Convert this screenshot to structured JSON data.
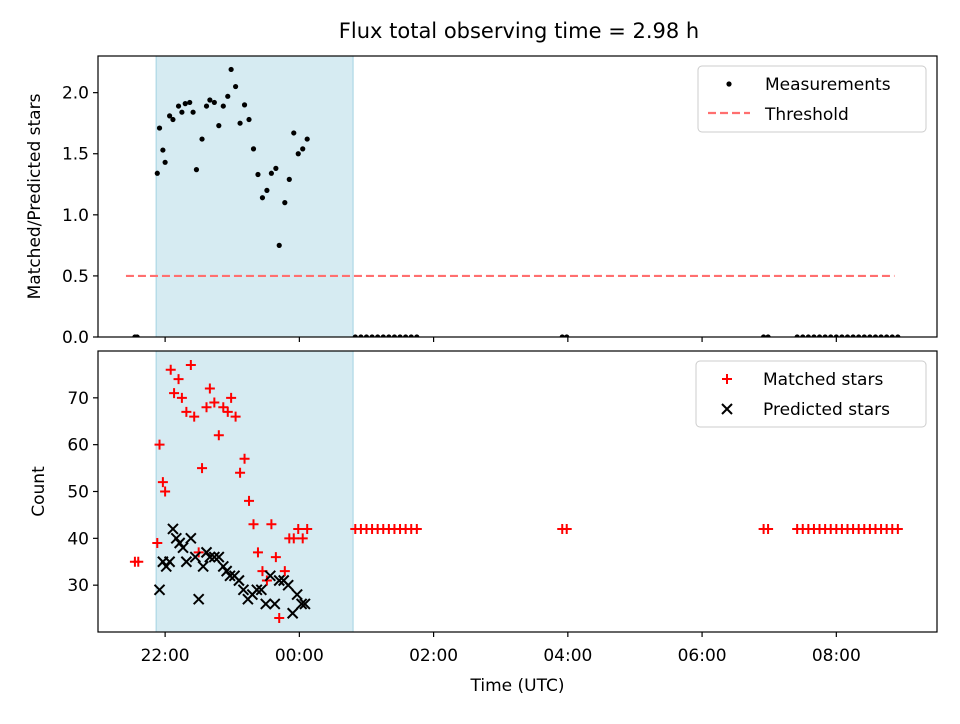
{
  "title": "Flux total observing time = 2.98 h",
  "xlabel": "Time (UTC)",
  "x_ticks": [
    "22:00",
    "00:00",
    "02:00",
    "04:00",
    "06:00",
    "08:00"
  ],
  "colors": {
    "highlight": "#add8e6",
    "measurement": "#000000",
    "threshold": "#ff6f6f",
    "matched": "#ff0000",
    "predicted": "#000000"
  },
  "chart_data": [
    {
      "type": "scatter",
      "ylabel": "Matched/Predicted stars",
      "xlim": [
        "21:00",
        "09:30"
      ],
      "ylim": [
        0,
        2.3
      ],
      "y_ticks": [
        "0.0",
        "0.5",
        "1.0",
        "1.5",
        "2.0"
      ],
      "legend_position": "top-right",
      "highlight_span": [
        "21:52",
        "00:48"
      ],
      "threshold": {
        "name": "Threshold",
        "y": 0.5,
        "x_range": [
          "21:25",
          "08:52"
        ]
      },
      "series": [
        {
          "name": "Measurements",
          "points": [
            [
              "21:33",
              0
            ],
            [
              "21:35",
              0
            ],
            [
              "21:53",
              1.34
            ],
            [
              "21:55",
              1.71
            ],
            [
              "21:58",
              1.53
            ],
            [
              "22:00",
              1.43
            ],
            [
              "22:04",
              1.81
            ],
            [
              "22:07",
              1.78
            ],
            [
              "22:12",
              1.89
            ],
            [
              "22:15",
              1.84
            ],
            [
              "22:18",
              1.91
            ],
            [
              "22:22",
              1.92
            ],
            [
              "22:25",
              1.84
            ],
            [
              "22:28",
              1.37
            ],
            [
              "22:33",
              1.62
            ],
            [
              "22:37",
              1.89
            ],
            [
              "22:40",
              1.94
            ],
            [
              "22:44",
              1.92
            ],
            [
              "22:48",
              1.73
            ],
            [
              "22:52",
              1.89
            ],
            [
              "22:56",
              1.97
            ],
            [
              "22:59",
              2.19
            ],
            [
              "23:03",
              2.05
            ],
            [
              "23:07",
              1.75
            ],
            [
              "23:11",
              1.9
            ],
            [
              "23:15",
              1.78
            ],
            [
              "23:19",
              1.54
            ],
            [
              "23:23",
              1.33
            ],
            [
              "23:27",
              1.14
            ],
            [
              "23:31",
              1.2
            ],
            [
              "23:35",
              1.34
            ],
            [
              "23:39",
              1.38
            ],
            [
              "23:42",
              0.75
            ],
            [
              "23:47",
              1.1
            ],
            [
              "23:51",
              1.29
            ],
            [
              "23:55",
              1.67
            ],
            [
              "23:59",
              1.5
            ],
            [
              "00:03",
              1.54
            ],
            [
              "00:07",
              1.62
            ],
            [
              "00:50",
              0
            ],
            [
              "00:55",
              0
            ],
            [
              "01:00",
              0
            ],
            [
              "01:05",
              0
            ],
            [
              "01:10",
              0
            ],
            [
              "01:15",
              0
            ],
            [
              "01:20",
              0
            ],
            [
              "01:25",
              0
            ],
            [
              "01:30",
              0
            ],
            [
              "01:35",
              0
            ],
            [
              "01:40",
              0
            ],
            [
              "01:45",
              0
            ],
            [
              "03:55",
              0
            ],
            [
              "03:59",
              0
            ],
            [
              "06:55",
              0
            ],
            [
              "06:59",
              0
            ],
            [
              "07:25",
              0
            ],
            [
              "07:30",
              0
            ],
            [
              "07:35",
              0
            ],
            [
              "07:40",
              0
            ],
            [
              "07:45",
              0
            ],
            [
              "07:50",
              0
            ],
            [
              "07:55",
              0
            ],
            [
              "08:00",
              0
            ],
            [
              "08:05",
              0
            ],
            [
              "08:10",
              0
            ],
            [
              "08:15",
              0
            ],
            [
              "08:20",
              0
            ],
            [
              "08:25",
              0
            ],
            [
              "08:30",
              0
            ],
            [
              "08:35",
              0
            ],
            [
              "08:40",
              0
            ],
            [
              "08:45",
              0
            ],
            [
              "08:50",
              0
            ],
            [
              "08:55",
              0
            ]
          ]
        }
      ]
    },
    {
      "type": "scatter",
      "ylabel": "Count",
      "xlim": [
        "21:00",
        "09:30"
      ],
      "ylim": [
        20,
        80
      ],
      "y_ticks": [
        "30",
        "40",
        "50",
        "60",
        "70"
      ],
      "legend_position": "top-right",
      "highlight_span": [
        "21:52",
        "00:48"
      ],
      "series": [
        {
          "name": "Matched stars",
          "marker": "plus",
          "points": [
            [
              "21:33",
              35
            ],
            [
              "21:36",
              35
            ],
            [
              "21:53",
              39
            ],
            [
              "21:55",
              60
            ],
            [
              "21:58",
              52
            ],
            [
              "22:00",
              50
            ],
            [
              "22:05",
              76
            ],
            [
              "22:08",
              71
            ],
            [
              "22:12",
              74
            ],
            [
              "22:15",
              70
            ],
            [
              "22:19",
              67
            ],
            [
              "22:23",
              77
            ],
            [
              "22:26",
              66
            ],
            [
              "22:30",
              37
            ],
            [
              "22:33",
              55
            ],
            [
              "22:37",
              68
            ],
            [
              "22:40",
              72
            ],
            [
              "22:44",
              69
            ],
            [
              "22:48",
              62
            ],
            [
              "22:52",
              68
            ],
            [
              "22:56",
              67
            ],
            [
              "22:59",
              70
            ],
            [
              "23:03",
              66
            ],
            [
              "23:07",
              54
            ],
            [
              "23:11",
              57
            ],
            [
              "23:15",
              48
            ],
            [
              "23:19",
              43
            ],
            [
              "23:23",
              37
            ],
            [
              "23:27",
              33
            ],
            [
              "23:31",
              31
            ],
            [
              "23:35",
              43
            ],
            [
              "23:39",
              36
            ],
            [
              "23:42",
              23
            ],
            [
              "23:47",
              33
            ],
            [
              "23:51",
              40
            ],
            [
              "23:55",
              40
            ],
            [
              "23:59",
              42
            ],
            [
              "00:03",
              40
            ],
            [
              "00:07",
              42
            ],
            [
              "00:50",
              42
            ],
            [
              "00:55",
              42
            ],
            [
              "01:00",
              42
            ],
            [
              "01:05",
              42
            ],
            [
              "01:10",
              42
            ],
            [
              "01:15",
              42
            ],
            [
              "01:20",
              42
            ],
            [
              "01:25",
              42
            ],
            [
              "01:30",
              42
            ],
            [
              "01:35",
              42
            ],
            [
              "01:40",
              42
            ],
            [
              "01:45",
              42
            ],
            [
              "03:55",
              42
            ],
            [
              "03:59",
              42
            ],
            [
              "06:55",
              42
            ],
            [
              "06:59",
              42
            ],
            [
              "07:25",
              42
            ],
            [
              "07:30",
              42
            ],
            [
              "07:35",
              42
            ],
            [
              "07:40",
              42
            ],
            [
              "07:45",
              42
            ],
            [
              "07:50",
              42
            ],
            [
              "07:55",
              42
            ],
            [
              "08:00",
              42
            ],
            [
              "08:05",
              42
            ],
            [
              "08:10",
              42
            ],
            [
              "08:15",
              42
            ],
            [
              "08:20",
              42
            ],
            [
              "08:25",
              42
            ],
            [
              "08:30",
              42
            ],
            [
              "08:35",
              42
            ],
            [
              "08:40",
              42
            ],
            [
              "08:45",
              42
            ],
            [
              "08:50",
              42
            ],
            [
              "08:55",
              42
            ]
          ]
        },
        {
          "name": "Predicted stars",
          "marker": "x",
          "points": [
            [
              "21:55",
              29
            ],
            [
              "21:58",
              35
            ],
            [
              "22:01",
              34
            ],
            [
              "22:04",
              35
            ],
            [
              "22:07",
              42
            ],
            [
              "22:10",
              40
            ],
            [
              "22:13",
              39
            ],
            [
              "22:16",
              38
            ],
            [
              "22:19",
              35
            ],
            [
              "22:23",
              40
            ],
            [
              "22:27",
              36
            ],
            [
              "22:30",
              27
            ],
            [
              "22:34",
              34
            ],
            [
              "22:37",
              37
            ],
            [
              "22:40",
              36
            ],
            [
              "22:44",
              36
            ],
            [
              "22:48",
              36
            ],
            [
              "22:52",
              34
            ],
            [
              "22:55",
              33
            ],
            [
              "22:58",
              32
            ],
            [
              "23:02",
              32
            ],
            [
              "23:06",
              31
            ],
            [
              "23:10",
              29
            ],
            [
              "23:14",
              27
            ],
            [
              "23:18",
              28
            ],
            [
              "23:22",
              29
            ],
            [
              "23:26",
              29
            ],
            [
              "23:30",
              26
            ],
            [
              "23:34",
              32
            ],
            [
              "23:38",
              26
            ],
            [
              "23:42",
              31
            ],
            [
              "23:46",
              31
            ],
            [
              "23:50",
              30
            ],
            [
              "23:54",
              24
            ],
            [
              "23:58",
              28
            ],
            [
              "00:02",
              26
            ],
            [
              "00:05",
              26
            ]
          ]
        }
      ]
    }
  ]
}
